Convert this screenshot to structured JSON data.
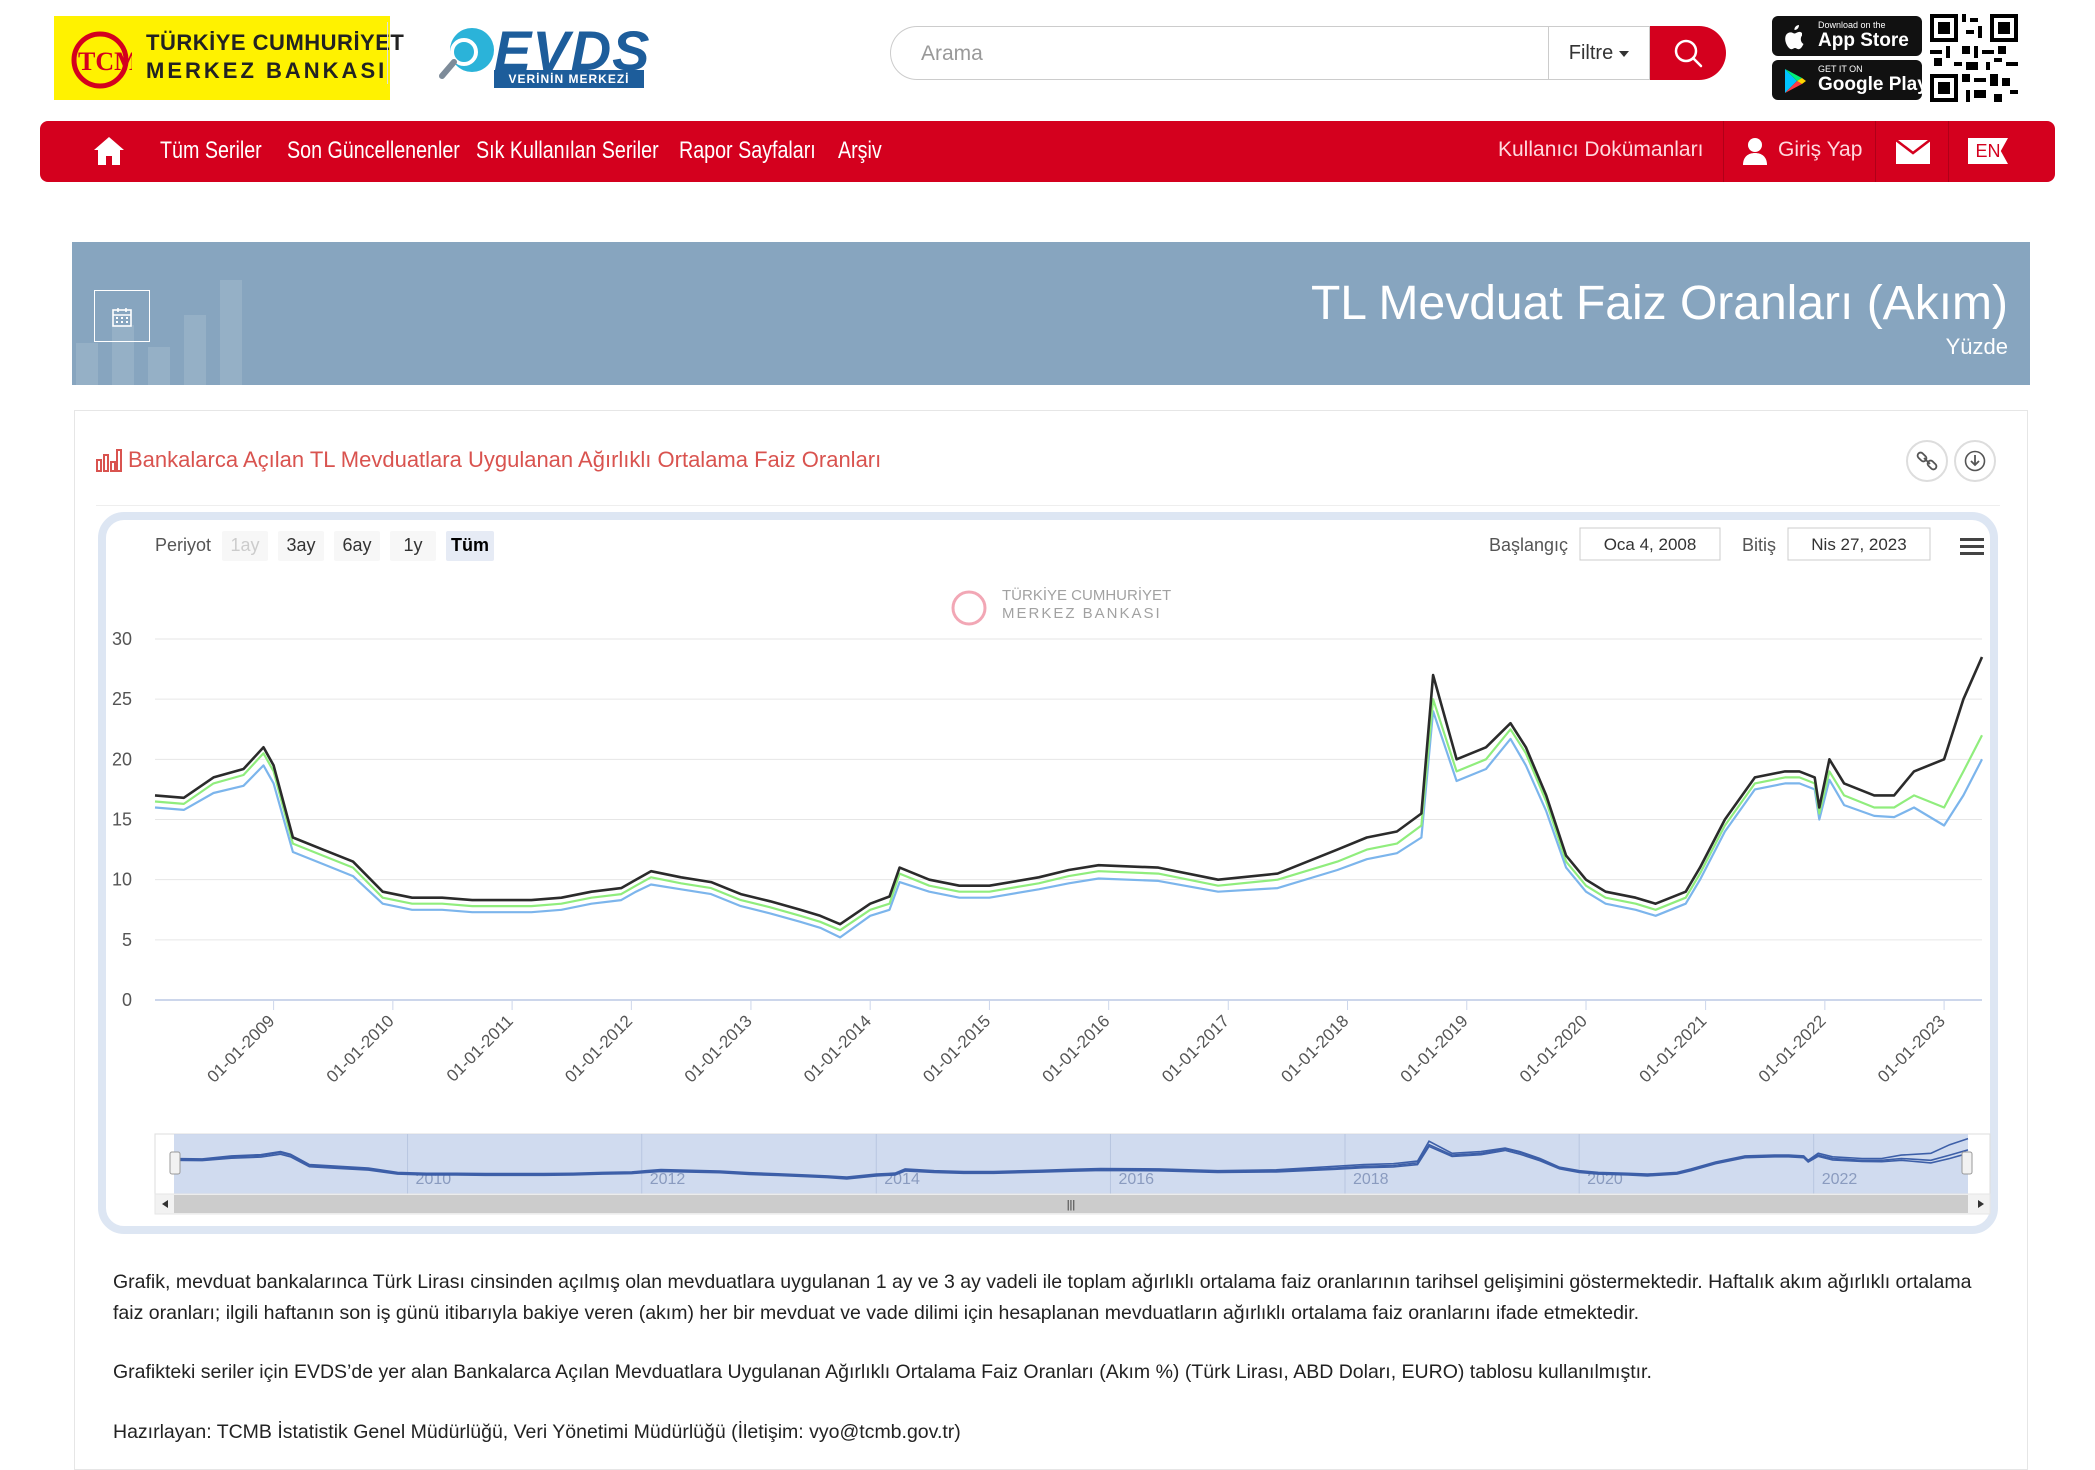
{
  "header": {
    "tcmb_logo": {
      "mark_text": "TCMB",
      "line1": "TÜRKİYE CUMHURİYET",
      "line2": "MERKEZ BANKASI"
    },
    "evds_logo": {
      "name": "EVDS",
      "tagline": "VERİNİN MERKEZİ"
    },
    "search": {
      "placeholder": "Arama",
      "filter_label": "Filtre"
    },
    "app_store": {
      "small": "Download on the",
      "big": "App Store"
    },
    "google_play": {
      "small": "GET IT ON",
      "big": "Google Play"
    }
  },
  "nav": {
    "items": [
      "Tüm Seriler",
      "Son Güncellenenler",
      "Sık Kullanılan Seriler",
      "Rapor Sayfaları",
      "Arşiv"
    ],
    "user_docs": "Kullanıcı Dokümanları",
    "login": "Giriş Yap",
    "lang": "EN"
  },
  "banner": {
    "title": "TL Mevduat Faiz Oranları (Akım)",
    "subtitle": "Yüzde"
  },
  "panel": {
    "title": "Bankalarca Açılan TL Mevduatlara Uygulanan Ağırlıklı Ortalama Faiz Oranları"
  },
  "chart_controls": {
    "period_label": "Periyot",
    "period_buttons": [
      "1ay",
      "3ay",
      "6ay",
      "1y",
      "Tüm"
    ],
    "active_period": "Tüm",
    "start_label": "Başlangıç",
    "start_value": "Oca 4, 2008",
    "end_label": "Bitiş",
    "end_value": "Nis 27, 2023",
    "watermark_line1": "TÜRKİYE CUMHURİYET",
    "watermark_line2": "MERKEZ BANKASI"
  },
  "colors": {
    "brand_red": "#d4001e",
    "banner_blue": "#87a5bf",
    "series_dark": "#2b2b2b",
    "series_green": "#90ed7d",
    "series_blue": "#7cb5ec"
  },
  "chart_data": {
    "type": "line",
    "title": "",
    "xlabel": "",
    "ylabel": "",
    "ylim": [
      0,
      30
    ],
    "yticks": [
      0,
      5,
      10,
      15,
      20,
      25,
      30
    ],
    "xlim": [
      "2008-01-04",
      "2023-04-27"
    ],
    "xticks": [
      "01-01-2009",
      "01-01-2010",
      "01-01-2011",
      "01-01-2012",
      "01-01-2013",
      "01-01-2014",
      "01-01-2015",
      "01-01-2016",
      "01-01-2017",
      "01-01-2018",
      "01-01-2019",
      "01-01-2020",
      "01-01-2021",
      "01-01-2022",
      "01-01-2023"
    ],
    "navigator_labels": [
      "2010",
      "2012",
      "2014",
      "2016",
      "2018",
      "2020",
      "2022"
    ],
    "grid": true,
    "legend": "none",
    "x": [
      "2008-01-04",
      "2008-04-01",
      "2008-07-01",
      "2008-10-01",
      "2008-12-01",
      "2009-01-01",
      "2009-03-01",
      "2009-06-01",
      "2009-09-01",
      "2009-12-01",
      "2010-03-01",
      "2010-06-01",
      "2010-09-01",
      "2010-12-01",
      "2011-03-01",
      "2011-06-01",
      "2011-09-01",
      "2011-12-01",
      "2012-01-15",
      "2012-03-01",
      "2012-06-01",
      "2012-09-01",
      "2012-12-01",
      "2013-03-01",
      "2013-06-01",
      "2013-08-01",
      "2013-10-01",
      "2014-01-01",
      "2014-03-01",
      "2014-04-01",
      "2014-07-01",
      "2014-10-01",
      "2015-01-01",
      "2015-06-01",
      "2015-09-01",
      "2015-12-01",
      "2016-06-01",
      "2016-12-01",
      "2017-06-01",
      "2017-12-01",
      "2018-03-01",
      "2018-06-01",
      "2018-08-15",
      "2018-09-20",
      "2018-12-01",
      "2019-03-01",
      "2019-05-15",
      "2019-07-01",
      "2019-09-01",
      "2019-11-01",
      "2020-01-01",
      "2020-03-01",
      "2020-06-01",
      "2020-08-01",
      "2020-11-01",
      "2020-12-15",
      "2021-03-01",
      "2021-06-01",
      "2021-09-01",
      "2021-10-15",
      "2021-12-01",
      "2021-12-15",
      "2022-01-15",
      "2022-03-01",
      "2022-06-01",
      "2022-08-01",
      "2022-10-01",
      "2023-01-01",
      "2023-03-01",
      "2023-04-27"
    ],
    "series": [
      {
        "color": "#2b2b2b",
        "values": [
          17,
          16.8,
          18.5,
          19.2,
          21,
          19.5,
          13.5,
          12.5,
          11.5,
          9,
          8.5,
          8.5,
          8.3,
          8.3,
          8.3,
          8.5,
          9,
          9.3,
          10,
          10.7,
          10.2,
          9.8,
          8.8,
          8.2,
          7.5,
          7,
          6.3,
          8,
          8.6,
          11,
          10,
          9.5,
          9.5,
          10.2,
          10.8,
          11.2,
          11,
          10,
          10.5,
          12.5,
          13.5,
          14,
          15.5,
          27,
          20,
          21,
          23,
          21,
          17,
          12,
          10,
          9,
          8.5,
          8,
          9,
          11,
          15,
          18.5,
          19,
          19,
          18.5,
          16,
          20,
          18,
          17,
          17,
          19,
          20,
          25,
          28.5
        ]
      },
      {
        "color": "#90ed7d",
        "values": [
          16.5,
          16.3,
          18,
          18.7,
          20.5,
          19,
          13,
          12,
          11,
          8.5,
          8,
          8,
          7.8,
          7.8,
          7.8,
          8,
          8.5,
          8.8,
          9.5,
          10.2,
          9.7,
          9.3,
          8.3,
          7.7,
          7,
          6.5,
          5.8,
          7.5,
          8,
          10.5,
          9.5,
          9,
          9,
          9.7,
          10.3,
          10.7,
          10.5,
          9.5,
          10,
          11.5,
          12.5,
          13,
          14.5,
          25,
          19,
          20,
          22.5,
          20.5,
          16.5,
          11.5,
          9.5,
          8.5,
          8,
          7.5,
          8.5,
          10.5,
          14.5,
          18,
          18.5,
          18.5,
          18,
          15.5,
          19,
          17,
          16,
          16,
          17,
          16,
          19,
          22
        ]
      },
      {
        "color": "#7cb5ec",
        "values": [
          16,
          15.8,
          17.2,
          17.8,
          19.5,
          18,
          12.3,
          11.3,
          10.3,
          8,
          7.5,
          7.5,
          7.3,
          7.3,
          7.3,
          7.5,
          8,
          8.3,
          9,
          9.6,
          9.2,
          8.8,
          7.8,
          7.2,
          6.5,
          6,
          5.2,
          7,
          7.5,
          9.8,
          9,
          8.5,
          8.5,
          9.2,
          9.7,
          10.1,
          9.9,
          9,
          9.3,
          10.8,
          11.7,
          12.2,
          13.5,
          24,
          18.2,
          19.2,
          21.7,
          19.5,
          15.7,
          11,
          9,
          8,
          7.5,
          7,
          8,
          10,
          14,
          17.5,
          18,
          18,
          17.5,
          15,
          18.3,
          16.2,
          15.3,
          15.2,
          16,
          14.5,
          17,
          20
        ]
      }
    ]
  },
  "description": {
    "paragraph1": "Grafik, mevduat bankalarınca Türk Lirası cinsinden açılmış olan mevduatlara uygulanan 1 ay ve 3 ay vadeli ile toplam ağırlıklı ortalama faiz oranlarının tarihsel gelişimini göstermektedir. Haftalık akım ağırlıklı ortalama faiz oranları; ilgili haftanın son iş günü itibarıyla bakiye veren (akım) her bir mevduat ve vade dilimi için hesaplanan mevduatların ağırlıklı ortalama faiz oranlarını ifade etmektedir.",
    "paragraph2": "Grafikteki seriler için EVDS’de yer alan Bankalarca Açılan Mevduatlara Uygulanan Ağırlıklı Ortalama Faiz Oranları (Akım %)  (Türk Lirası, ABD Doları, EURO) tablosu kullanılmıştır.",
    "paragraph3": "Hazırlayan: TCMB İstatistik Genel Müdürlüğü, Veri Yönetimi Müdürlüğü (İletişim: vyo@tcmb.gov.tr)"
  }
}
